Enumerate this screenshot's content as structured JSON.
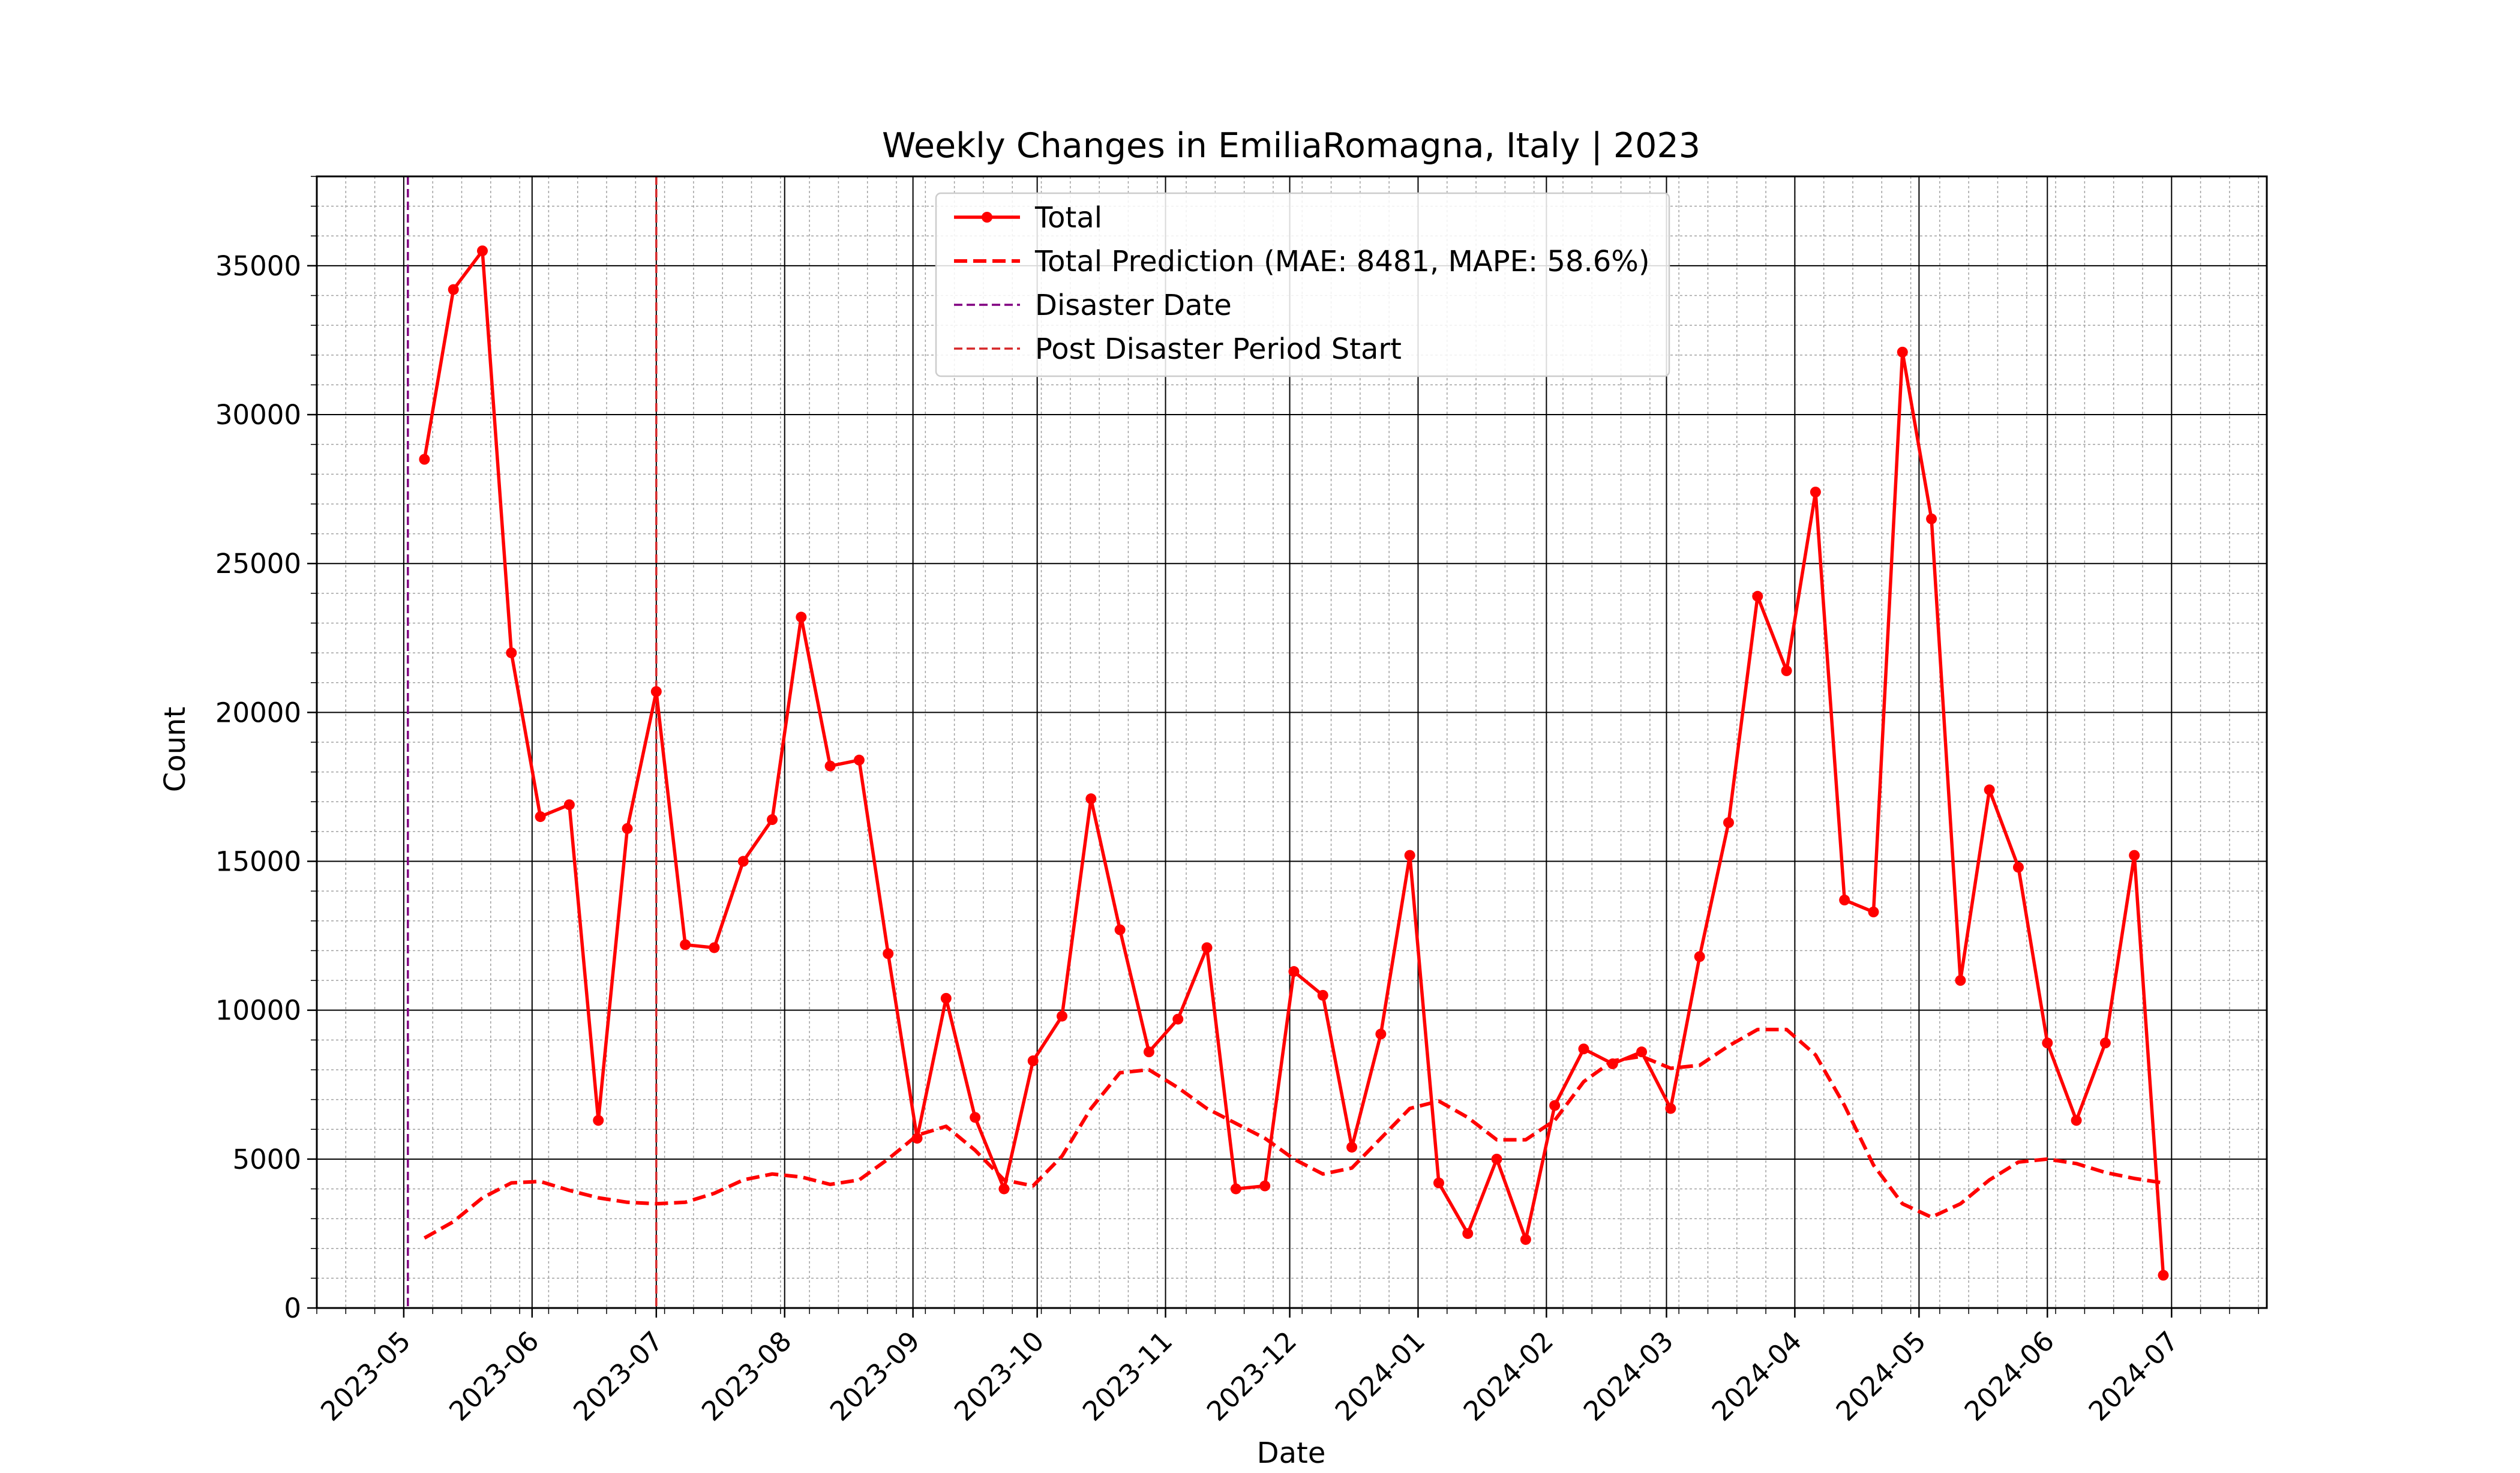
{
  "chart_data": {
    "type": "line",
    "title": "Weekly Changes in EmiliaRomagna, Italy | 2023",
    "xlabel": "Date",
    "ylabel": "Count",
    "x_range": [
      "2023-04-10",
      "2024-07-24"
    ],
    "ylim": [
      0,
      38000
    ],
    "yticks": [
      0,
      5000,
      10000,
      15000,
      20000,
      25000,
      30000,
      35000
    ],
    "xticks": [
      {
        "date": "2023-05-01",
        "label": "2023-05"
      },
      {
        "date": "2023-06-01",
        "label": "2023-06"
      },
      {
        "date": "2023-07-01",
        "label": "2023-07"
      },
      {
        "date": "2023-08-01",
        "label": "2023-08"
      },
      {
        "date": "2023-09-01",
        "label": "2023-09"
      },
      {
        "date": "2023-10-01",
        "label": "2023-10"
      },
      {
        "date": "2023-11-01",
        "label": "2023-11"
      },
      {
        "date": "2023-12-01",
        "label": "2023-12"
      },
      {
        "date": "2024-01-01",
        "label": "2024-01"
      },
      {
        "date": "2024-02-01",
        "label": "2024-02"
      },
      {
        "date": "2024-03-01",
        "label": "2024-03"
      },
      {
        "date": "2024-04-01",
        "label": "2024-04"
      },
      {
        "date": "2024-05-01",
        "label": "2024-05"
      },
      {
        "date": "2024-06-01",
        "label": "2024-06"
      },
      {
        "date": "2024-07-01",
        "label": "2024-07"
      }
    ],
    "grid": true,
    "legend_position": "top-center",
    "dates": [
      "2023-05-06",
      "2023-05-13",
      "2023-05-20",
      "2023-05-27",
      "2023-06-03",
      "2023-06-10",
      "2023-06-17",
      "2023-06-24",
      "2023-07-01",
      "2023-07-08",
      "2023-07-15",
      "2023-07-22",
      "2023-07-29",
      "2023-08-05",
      "2023-08-12",
      "2023-08-19",
      "2023-08-26",
      "2023-09-02",
      "2023-09-09",
      "2023-09-16",
      "2023-09-23",
      "2023-09-30",
      "2023-10-07",
      "2023-10-14",
      "2023-10-21",
      "2023-10-28",
      "2023-11-04",
      "2023-11-11",
      "2023-11-18",
      "2023-11-25",
      "2023-12-02",
      "2023-12-09",
      "2023-12-16",
      "2023-12-23",
      "2023-12-30",
      "2024-01-06",
      "2024-01-13",
      "2024-01-20",
      "2024-01-27",
      "2024-02-03",
      "2024-02-10",
      "2024-02-17",
      "2024-02-24",
      "2024-03-02",
      "2024-03-09",
      "2024-03-16",
      "2024-03-23",
      "2024-03-30",
      "2024-04-06",
      "2024-04-13",
      "2024-04-20",
      "2024-04-27",
      "2024-05-04",
      "2024-05-11",
      "2024-05-18",
      "2024-05-25",
      "2024-06-01",
      "2024-06-08",
      "2024-06-15",
      "2024-06-22",
      "2024-06-29"
    ],
    "series": [
      {
        "name": "Total",
        "style": "solid-with-markers",
        "color": "#ff0000",
        "values": [
          28500,
          34200,
          35500,
          22000,
          16500,
          16900,
          6300,
          16100,
          20700,
          12200,
          12100,
          15000,
          16400,
          23200,
          18200,
          18400,
          11900,
          5700,
          10400,
          6400,
          4000,
          8300,
          9800,
          17100,
          12700,
          8600,
          9700,
          12100,
          4000,
          4100,
          11300,
          10500,
          5400,
          9200,
          15200,
          4200,
          2500,
          5000,
          2300,
          6800,
          8700,
          8200,
          8600,
          6700,
          11800,
          16300,
          23900,
          21400,
          27400,
          13700,
          13300,
          32100,
          26500,
          11000,
          17400,
          14800,
          8900,
          6300,
          8900,
          15200,
          1100
        ]
      },
      {
        "name": "Total Prediction (MAE: 8481, MAPE: 58.6%)",
        "style": "dashed",
        "color": "#ff0000",
        "values": [
          2350,
          2900,
          3700,
          4200,
          4250,
          3950,
          3700,
          3550,
          3500,
          3550,
          3850,
          4300,
          4500,
          4400,
          4150,
          4300,
          5000,
          5800,
          6100,
          5300,
          4300,
          4100,
          5100,
          6700,
          7900,
          8000,
          7400,
          6700,
          6200,
          5700,
          5000,
          4500,
          4700,
          5700,
          6700,
          6950,
          6400,
          5650,
          5650,
          6300,
          7600,
          8300,
          8450,
          8050,
          8150,
          8800,
          9350,
          9350,
          8500,
          6800,
          4800,
          3500,
          3050,
          3500,
          4300,
          4900,
          5000,
          4850,
          4550,
          4350,
          4200
        ]
      }
    ],
    "vlines": [
      {
        "name": "Disaster Date",
        "date": "2023-05-02",
        "color": "#800080",
        "style": "dashed"
      },
      {
        "name": "Post Disaster Period Start",
        "date": "2023-07-01",
        "color": "#d62728",
        "style": "dashed"
      }
    ]
  }
}
